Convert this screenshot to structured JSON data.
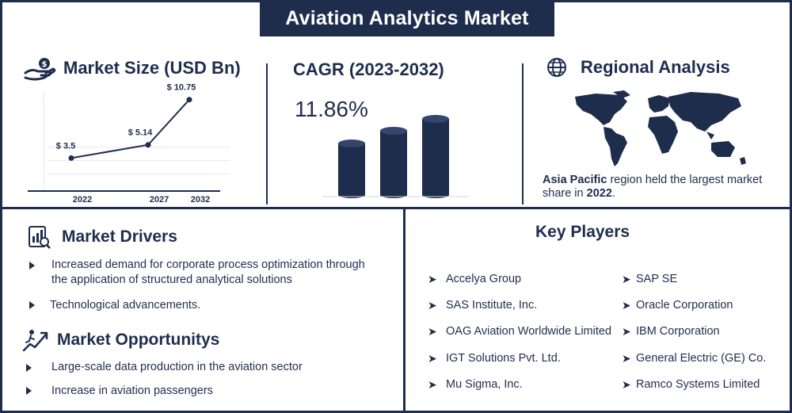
{
  "title": "Aviation Analytics Market",
  "market_size": {
    "heading": "Market Size (USD Bn)",
    "icon": "money-hand-icon"
  },
  "chart_data": {
    "type": "line",
    "x": [
      "2022",
      "2027",
      "2032"
    ],
    "values": [
      3.5,
      5.14,
      10.75
    ],
    "data_labels": [
      "$ 3.5",
      "$ 5.14",
      "$ 10.75"
    ],
    "ylim": [
      0,
      12
    ],
    "grid": true
  },
  "cagr": {
    "heading": "CAGR (2023-2032)",
    "value": "11.86%",
    "colors": {
      "bar": "#1f2d4d",
      "bar_top": "#2c3e66"
    }
  },
  "regional": {
    "heading": "Regional Analysis",
    "icon": "globe-icon",
    "region": "Asia Pacific",
    "sentence_mid": " region held the largest market share in ",
    "year": "2022",
    "sentence_end": "."
  },
  "drivers": {
    "heading": "Market Drivers",
    "icon": "analysis-document-icon",
    "items": [
      "Increased demand for corporate process optimization through",
      "the application of structured analytical solutions",
      "Technological advancements."
    ]
  },
  "opportunities": {
    "heading": "Market Opportunitys",
    "icon": "growth-runner-icon",
    "items": [
      "Large-scale data production in the aviation sector",
      "Increase in aviation passengers"
    ]
  },
  "key_players": {
    "heading": "Key Players",
    "left": [
      "Accelya Group",
      "SAS Institute, Inc.",
      "OAG Aviation Worldwide Limited",
      "IGT Solutions Pvt. Ltd.",
      "Mu Sigma, Inc."
    ],
    "right": [
      "SAP SE",
      "Oracle Corporation",
      "IBM Corporation",
      "General Electric (GE) Co.",
      "Ramco Systems Limited"
    ]
  },
  "colors": {
    "navy": "#1f2d4d",
    "background": "#ffffff"
  }
}
